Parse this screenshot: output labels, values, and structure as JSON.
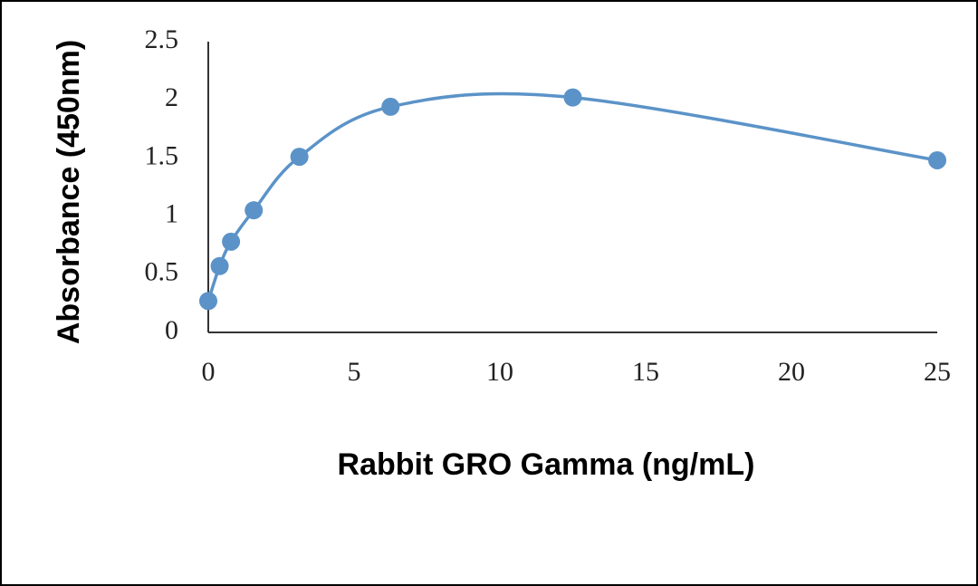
{
  "chart_data": {
    "type": "scatter",
    "line": "smooth",
    "xlabel": "Rabbit GRO Gamma (ng/mL)",
    "ylabel": "Absorbance (450nm)",
    "x": [
      0,
      0.39,
      0.78,
      1.56,
      3.125,
      6.25,
      12.5,
      25
    ],
    "series": [
      {
        "color": "#5b93c8",
        "values": [
          0.27,
          0.57,
          0.78,
          1.05,
          1.51,
          1.94,
          2.02,
          1.48
        ]
      }
    ],
    "xlim": [
      0,
      25
    ],
    "xticks": [
      0,
      5,
      10,
      15,
      20,
      25
    ],
    "ylim": [
      0,
      2.5
    ],
    "yticks": [
      0,
      0.5,
      1,
      1.5,
      2,
      2.5
    ],
    "grid": false
  }
}
